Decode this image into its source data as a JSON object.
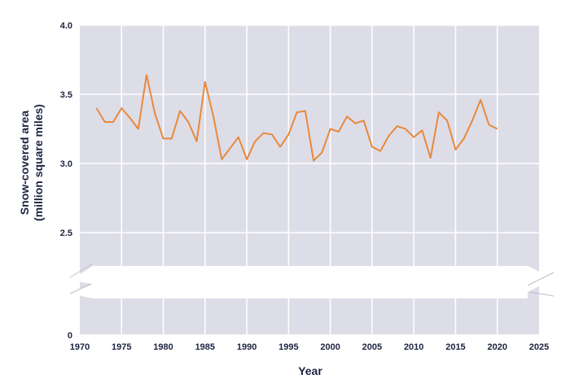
{
  "chart_data": {
    "type": "line",
    "title": "",
    "xlabel": "Year",
    "ylabel_line1": "Snow-covered area",
    "ylabel_line2": "(million square miles)",
    "xlim": [
      1970,
      2025
    ],
    "x_ticks": [
      1970,
      1975,
      1980,
      1985,
      1990,
      1995,
      2000,
      2005,
      2010,
      2015,
      2020,
      2025
    ],
    "y_ticks": [
      "0",
      "2.5",
      "3.0",
      "3.5",
      "4.0"
    ],
    "y_break": "axis break between 0 and 2.5",
    "grid": true,
    "legend": "none",
    "colors": {
      "line": "#e8893c",
      "plot_bg": "#dddde8",
      "grid": "#ffffff",
      "text": "#1c2340"
    },
    "series": [
      {
        "x": [
          1972,
          1973,
          1974,
          1975,
          1976,
          1977,
          1978,
          1979,
          1980,
          1981,
          1982,
          1983,
          1984,
          1985,
          1986,
          1987,
          1988,
          1989,
          1990,
          1991,
          1992,
          1993,
          1994,
          1995,
          1996,
          1997,
          1998,
          1999,
          2000,
          2001,
          2002,
          2003,
          2004,
          2005,
          2006,
          2007,
          2008,
          2009,
          2010,
          2011,
          2012,
          2013,
          2014,
          2015,
          2016,
          2017,
          2018,
          2019,
          2020
        ],
        "y": [
          3.4,
          3.3,
          3.3,
          3.4,
          3.33,
          3.25,
          3.64,
          3.36,
          3.18,
          3.18,
          3.38,
          3.3,
          3.16,
          3.59,
          3.34,
          3.03,
          3.11,
          3.19,
          3.03,
          3.16,
          3.22,
          3.21,
          3.12,
          3.21,
          3.37,
          3.38,
          3.02,
          3.08,
          3.25,
          3.23,
          3.34,
          3.29,
          3.31,
          3.12,
          3.09,
          3.2,
          3.27,
          3.25,
          3.19,
          3.24,
          3.04,
          3.37,
          3.31,
          3.1,
          3.18,
          3.31,
          3.46,
          3.28,
          3.25
        ]
      }
    ]
  }
}
